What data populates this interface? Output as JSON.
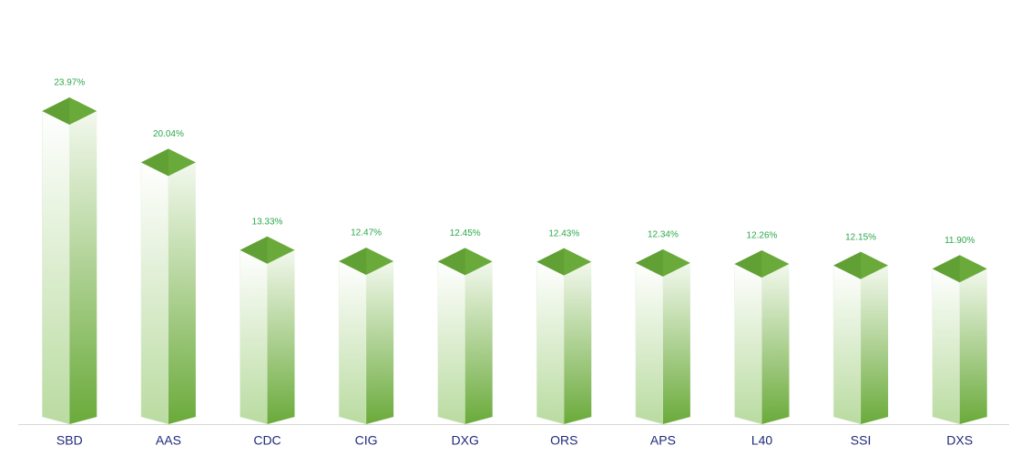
{
  "chart_data": {
    "type": "bar",
    "categories": [
      "SBD",
      "AAS",
      "CDC",
      "CIG",
      "DXG",
      "ORS",
      "APS",
      "L40",
      "SSI",
      "DXS"
    ],
    "values": [
      23.97,
      20.04,
      13.33,
      12.47,
      12.45,
      12.43,
      12.34,
      12.26,
      12.15,
      11.9
    ],
    "value_labels": [
      "23.97%",
      "20.04%",
      "13.33%",
      "12.47%",
      "12.45%",
      "12.43%",
      "12.34%",
      "12.26%",
      "12.15%",
      "11.90%"
    ],
    "color": "#6aaa3a"
  }
}
